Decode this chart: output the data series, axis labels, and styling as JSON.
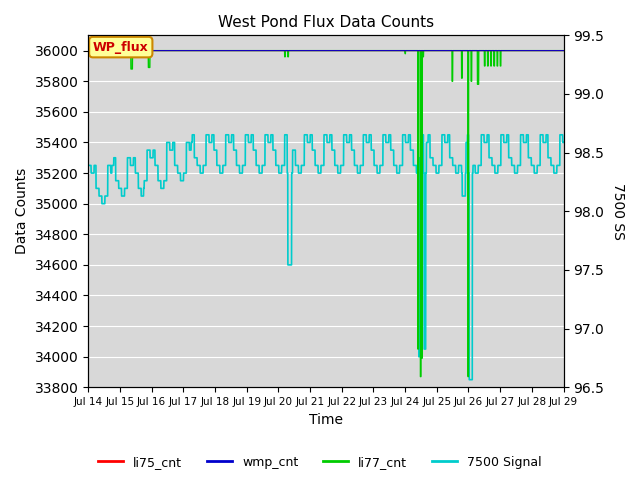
{
  "title": "West Pond Flux Data Counts",
  "xlabel": "Time",
  "ylabel_left": "Data Counts",
  "ylabel_right": "7500 SS",
  "ylim_left": [
    33800,
    36100
  ],
  "ylim_right": [
    96.5,
    99.5
  ],
  "bg_color": "#d8d8d8",
  "annotation_text": "WP_flux",
  "annotation_bg": "#ffff99",
  "annotation_border": "#cc8800",
  "annotation_text_color": "#cc0000",
  "legend_entries": [
    "li75_cnt",
    "wmp_cnt",
    "li77_cnt",
    "7500 Signal"
  ],
  "legend_colors": [
    "#ff0000",
    "#0000cc",
    "#00cc00",
    "#00cccc"
  ],
  "x_tick_labels": [
    "Jul 14",
    "Jul 15",
    "Jul 16",
    "Jul 17",
    "Jul 18",
    "Jul 19",
    "Jul 20",
    "Jul 21",
    "Jul 22",
    "Jul 23",
    "Jul 24",
    "Jul 25",
    "Jul 26",
    "Jul 27",
    "Jul 28",
    "Jul 29"
  ],
  "x_tick_positions": [
    0,
    1,
    2,
    3,
    4,
    5,
    6,
    7,
    8,
    9,
    10,
    11,
    12,
    13,
    14,
    15
  ],
  "yticks_left": [
    33800,
    34000,
    34200,
    34400,
    34600,
    34800,
    35000,
    35200,
    35400,
    35600,
    35800,
    36000
  ],
  "yticks_right": [
    96.5,
    97.0,
    97.5,
    98.0,
    98.5,
    99.0,
    99.5
  ]
}
